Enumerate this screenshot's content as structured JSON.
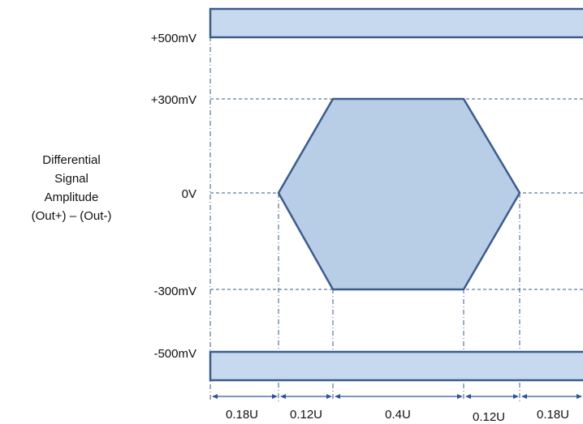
{
  "ylabel": [
    "Differential",
    "Signal",
    "Amplitude",
    "(Out+) – (Out-)"
  ],
  "levels": [
    {
      "label": "+500mV",
      "key": "plus500"
    },
    {
      "label": "+300mV",
      "key": "plus300"
    },
    {
      "label": "0V",
      "key": "zero"
    },
    {
      "label": "-300mV",
      "key": "minus300"
    },
    {
      "label": "-500mV",
      "key": "minus500"
    }
  ],
  "intervals": [
    {
      "label": "0.18U",
      "value": 0.18
    },
    {
      "label": "0.12U",
      "value": 0.12
    },
    {
      "label": "0.4U",
      "value": 0.4
    },
    {
      "label": "0.12U",
      "value": 0.12
    },
    {
      "label": "0.18U",
      "value": 0.18
    }
  ],
  "colors": {
    "band_fill": "#c7d9ef",
    "eye_fill": "#b8cde6",
    "outline": "#3b5c8d",
    "guide": "#3a5a8a",
    "dimension": "#2f5597"
  }
}
